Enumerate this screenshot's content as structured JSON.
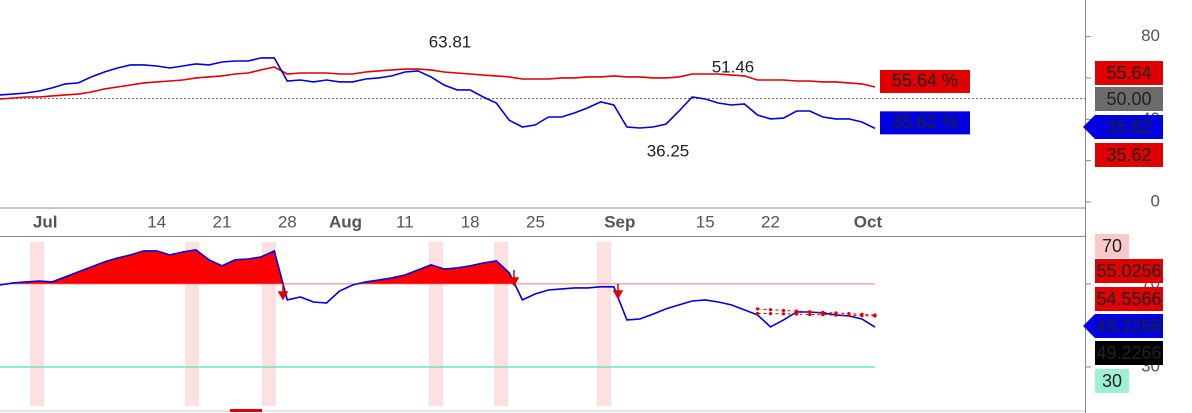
{
  "chart_data": [
    {
      "type": "line",
      "categories": [
        null,
        null,
        null,
        "Jul",
        null,
        null,
        null,
        null,
        null,
        null,
        null,
        null,
        "14",
        null,
        null,
        null,
        null,
        "21",
        null,
        null,
        null,
        null,
        "28",
        null,
        null,
        null,
        "Aug",
        null,
        null,
        null,
        null,
        "11",
        null,
        null,
        null,
        null,
        "18",
        null,
        null,
        null,
        null,
        "25",
        null,
        null,
        null,
        null,
        null,
        "Sep",
        null,
        null,
        null,
        null,
        null,
        null,
        "15",
        null,
        null,
        null,
        null,
        "22",
        null,
        null,
        null,
        null,
        null,
        null,
        "Oct",
        null
      ],
      "series": [
        {
          "name": "red",
          "color": "#e00000",
          "value_label": "55.64 %",
          "values": [
            49.8,
            50.3,
            50.8,
            50.8,
            51.3,
            51.8,
            52.2,
            53.2,
            54.7,
            55.6,
            56.6,
            57.6,
            58.1,
            58.5,
            59.0,
            60.0,
            60.5,
            61.0,
            61.9,
            62.4,
            63.9,
            65.3,
            61.9,
            62.4,
            62.4,
            62.4,
            61.9,
            61.9,
            62.9,
            63.4,
            63.9,
            64.3,
            64.3,
            63.9,
            62.9,
            62.4,
            61.9,
            61.4,
            61.0,
            60.5,
            59.5,
            59.5,
            59.5,
            60.0,
            60.0,
            60.5,
            60.5,
            61.0,
            60.5,
            60.5,
            60.0,
            60.0,
            60.5,
            61.9,
            61.9,
            61.9,
            61.4,
            61.0,
            59.0,
            59.0,
            59.0,
            58.5,
            58.5,
            58.1,
            58.1,
            57.6,
            57.1,
            55.64
          ]
        },
        {
          "name": "blue",
          "color": "#0000e0",
          "value_label": "35.62 %",
          "values": [
            51.8,
            52.2,
            52.7,
            53.7,
            55.2,
            57.1,
            57.6,
            60.5,
            62.9,
            64.8,
            66.3,
            66.3,
            65.8,
            64.8,
            65.8,
            66.8,
            66.3,
            67.7,
            68.2,
            68.2,
            69.7,
            69.7,
            58.5,
            59.0,
            58.1,
            59.0,
            58.1,
            58.1,
            59.5,
            60.0,
            61.0,
            62.9,
            63.4,
            60.5,
            56.6,
            54.2,
            54.2,
            50.8,
            47.9,
            39.5,
            36.3,
            37.3,
            41.1,
            41.1,
            43.1,
            45.5,
            48.4,
            46.9,
            36.3,
            35.8,
            36.3,
            37.7,
            44.0,
            50.8,
            49.8,
            47.9,
            46.9,
            47.4,
            42.1,
            40.2,
            40.6,
            44.0,
            44.0,
            41.1,
            40.2,
            40.2,
            38.7,
            35.62
          ]
        }
      ],
      "reference_line": 50,
      "annotations": [
        "63.81",
        "51.46",
        "36.25"
      ],
      "ylim": [
        -2.9,
        97.7
      ],
      "yticks": [
        0,
        20,
        40,
        60,
        80
      ],
      "price_tags": [
        {
          "label": "55.64",
          "color": "#e00000",
          "text_color": "#ffffff"
        },
        {
          "label": "50.00",
          "color": "#6b6b6b",
          "text_color": "#ffffff"
        },
        {
          "label": "35.62",
          "color": "#0000e0",
          "text_color": "#ffffff",
          "arrow": true
        },
        {
          "label": "35.62",
          "color": "#e00000",
          "text_color": "#ffffff"
        }
      ]
    },
    {
      "type": "line",
      "series": [
        {
          "name": "rsi",
          "color": "#0000e0",
          "values": [
            69.5,
            70.5,
            71.0,
            71.4,
            71.0,
            73.4,
            75.8,
            78.2,
            80.6,
            82.5,
            84.0,
            85.9,
            85.9,
            84.0,
            85.4,
            86.4,
            81.6,
            78.7,
            81.6,
            82.0,
            83.0,
            85.9,
            62.3,
            63.7,
            61.3,
            60.8,
            66.6,
            69.5,
            71.0,
            71.9,
            72.9,
            74.3,
            76.7,
            79.2,
            77.2,
            77.7,
            78.7,
            80.1,
            81.1,
            75.3,
            62.3,
            65.2,
            67.1,
            67.6,
            68.1,
            68.1,
            68.6,
            68.6,
            52.7,
            53.1,
            55.5,
            58.0,
            59.9,
            61.8,
            62.3,
            61.3,
            59.9,
            57.5,
            55.1,
            49.3,
            52.7,
            56.5,
            56.5,
            56.0,
            55.1,
            54.6,
            53.1,
            49.2266
          ]
        },
        {
          "name": "signal-1",
          "color": "#e00000",
          "dotted": true,
          "values": [
            null,
            null,
            null,
            null,
            null,
            null,
            null,
            null,
            null,
            null,
            null,
            null,
            null,
            null,
            null,
            null,
            null,
            null,
            null,
            null,
            null,
            null,
            null,
            null,
            null,
            null,
            null,
            null,
            null,
            null,
            null,
            null,
            null,
            null,
            null,
            null,
            null,
            null,
            null,
            null,
            null,
            null,
            null,
            null,
            null,
            null,
            null,
            null,
            null,
            null,
            null,
            null,
            null,
            null,
            null,
            null,
            null,
            null,
            58.0,
            57.6,
            57.2,
            56.9,
            56.6,
            56.3,
            56.0,
            55.7,
            55.4,
            55.0256
          ]
        },
        {
          "name": "signal-2",
          "color": "#e00000",
          "dotted": true,
          "values": [
            null,
            null,
            null,
            null,
            null,
            null,
            null,
            null,
            null,
            null,
            null,
            null,
            null,
            null,
            null,
            null,
            null,
            null,
            null,
            null,
            null,
            null,
            null,
            null,
            null,
            null,
            null,
            null,
            null,
            null,
            null,
            null,
            null,
            null,
            null,
            null,
            null,
            null,
            null,
            null,
            null,
            null,
            null,
            null,
            null,
            null,
            null,
            null,
            null,
            null,
            null,
            null,
            null,
            null,
            null,
            null,
            null,
            null,
            55.8,
            55.7,
            55.6,
            55.5,
            55.3,
            55.2,
            55.0,
            54.9,
            54.7,
            54.5566
          ]
        }
      ],
      "levels": [
        {
          "value": 70,
          "color": "#f4b4b4"
        },
        {
          "value": 30,
          "color": "#66e8c0"
        }
      ],
      "fill_above": 70,
      "fill_color": "#ff0000",
      "ylim": [
        9.3,
        92.6
      ],
      "yticks": [
        30,
        50,
        70
      ],
      "price_tags": [
        {
          "label": "70",
          "color": "#f9c8c8",
          "text_color": "#222222",
          "narrow": true
        },
        {
          "label": "55.0256",
          "color": "#e00000",
          "text_color": "#222222"
        },
        {
          "label": "54.5566",
          "color": "#e00000",
          "text_color": "#222222"
        },
        {
          "label": "49.2266",
          "color": "#0000e0",
          "text_color": "#ffffff",
          "arrow": true
        },
        {
          "label": "49.2266",
          "color": "#000000",
          "text_color": "#ffffff"
        },
        {
          "label": "30",
          "color": "#9feed6",
          "text_color": "#222222",
          "narrow": true
        }
      ]
    }
  ]
}
